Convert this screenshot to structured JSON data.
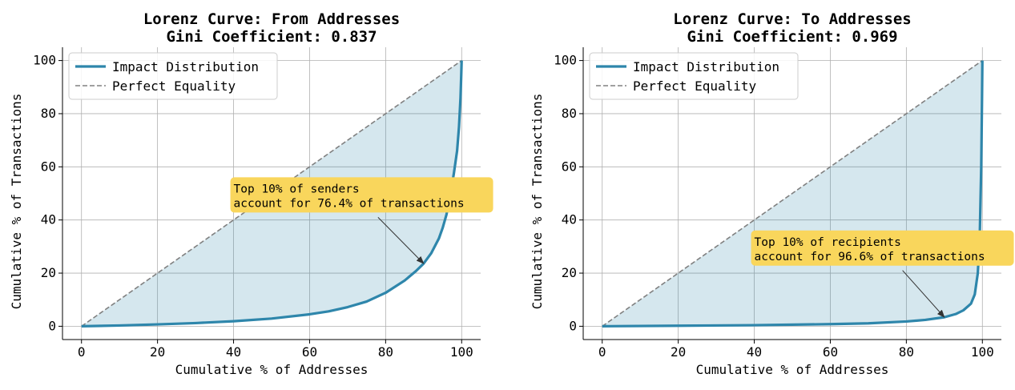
{
  "chart_data": [
    {
      "type": "line",
      "title": "Lorenz Curve: From Addresses",
      "subtitle": "Gini Coefficient: 0.837",
      "xlabel": "Cumulative % of Addresses",
      "ylabel": "Cumulative % of Transactions",
      "xlim": [
        -5,
        105
      ],
      "ylim": [
        -5,
        105
      ],
      "xticks": [
        "0",
        "20",
        "40",
        "60",
        "80",
        "100"
      ],
      "yticks": [
        "0",
        "20",
        "40",
        "60",
        "80",
        "100"
      ],
      "grid": true,
      "legend_position": "top-left",
      "series": [
        {
          "name": "Impact Distribution",
          "style": "solid",
          "fill": true,
          "color": "#2e86ab",
          "points": [
            [
              0,
              0
            ],
            [
              10,
              0.3
            ],
            [
              20,
              0.7
            ],
            [
              30,
              1.2
            ],
            [
              40,
              1.9
            ],
            [
              50,
              2.9
            ],
            [
              60,
              4.5
            ],
            [
              65,
              5.6
            ],
            [
              70,
              7.2
            ],
            [
              75,
              9.3
            ],
            [
              80,
              12.6
            ],
            [
              85,
              17.2
            ],
            [
              88,
              20.8
            ],
            [
              90,
              23.6
            ],
            [
              92,
              27.5
            ],
            [
              94,
              33
            ],
            [
              95,
              37
            ],
            [
              96,
              42
            ],
            [
              97,
              49
            ],
            [
              98,
              58
            ],
            [
              98.8,
              66
            ],
            [
              99.3,
              75
            ],
            [
              99.7,
              86
            ],
            [
              99.9,
              95
            ],
            [
              100,
              100
            ]
          ]
        },
        {
          "name": "Perfect Equality",
          "style": "dashed",
          "color": "#808080",
          "points": [
            [
              0,
              0
            ],
            [
              100,
              100
            ]
          ]
        }
      ],
      "annotation": {
        "lines": [
          "Top 10% of senders",
          "account for 76.4% of transactions"
        ],
        "text_at": [
          40,
          44
        ],
        "arrow_from": [
          78,
          41
        ],
        "arrow_to": [
          90,
          23.6
        ]
      }
    },
    {
      "type": "line",
      "title": "Lorenz Curve: To Addresses",
      "subtitle": "Gini Coefficient: 0.969",
      "xlabel": "Cumulative % of Addresses",
      "ylabel": "Cumulative % of Transactions",
      "xlim": [
        -5,
        105
      ],
      "ylim": [
        -5,
        105
      ],
      "xticks": [
        "0",
        "20",
        "40",
        "60",
        "80",
        "100"
      ],
      "yticks": [
        "0",
        "20",
        "40",
        "60",
        "80",
        "100"
      ],
      "grid": true,
      "legend_position": "top-left",
      "series": [
        {
          "name": "Impact Distribution",
          "style": "solid",
          "fill": true,
          "color": "#2e86ab",
          "points": [
            [
              0,
              0
            ],
            [
              20,
              0.2
            ],
            [
              40,
              0.4
            ],
            [
              60,
              0.8
            ],
            [
              70,
              1.1
            ],
            [
              80,
              1.8
            ],
            [
              85,
              2.4
            ],
            [
              90,
              3.4
            ],
            [
              93,
              4.6
            ],
            [
              95,
              6
            ],
            [
              97,
              8.5
            ],
            [
              98,
              12
            ],
            [
              98.8,
              20
            ],
            [
              99.3,
              33
            ],
            [
              99.7,
              60
            ],
            [
              99.9,
              85
            ],
            [
              100,
              100
            ]
          ]
        },
        {
          "name": "Perfect Equality",
          "style": "dashed",
          "color": "#808080",
          "points": [
            [
              0,
              0
            ],
            [
              100,
              100
            ]
          ]
        }
      ],
      "annotation": {
        "lines": [
          "Top 10% of recipients",
          "account for 96.6% of transactions"
        ],
        "text_at": [
          40,
          24
        ],
        "arrow_from": [
          79,
          21
        ],
        "arrow_to": [
          90,
          3.4
        ]
      }
    }
  ]
}
